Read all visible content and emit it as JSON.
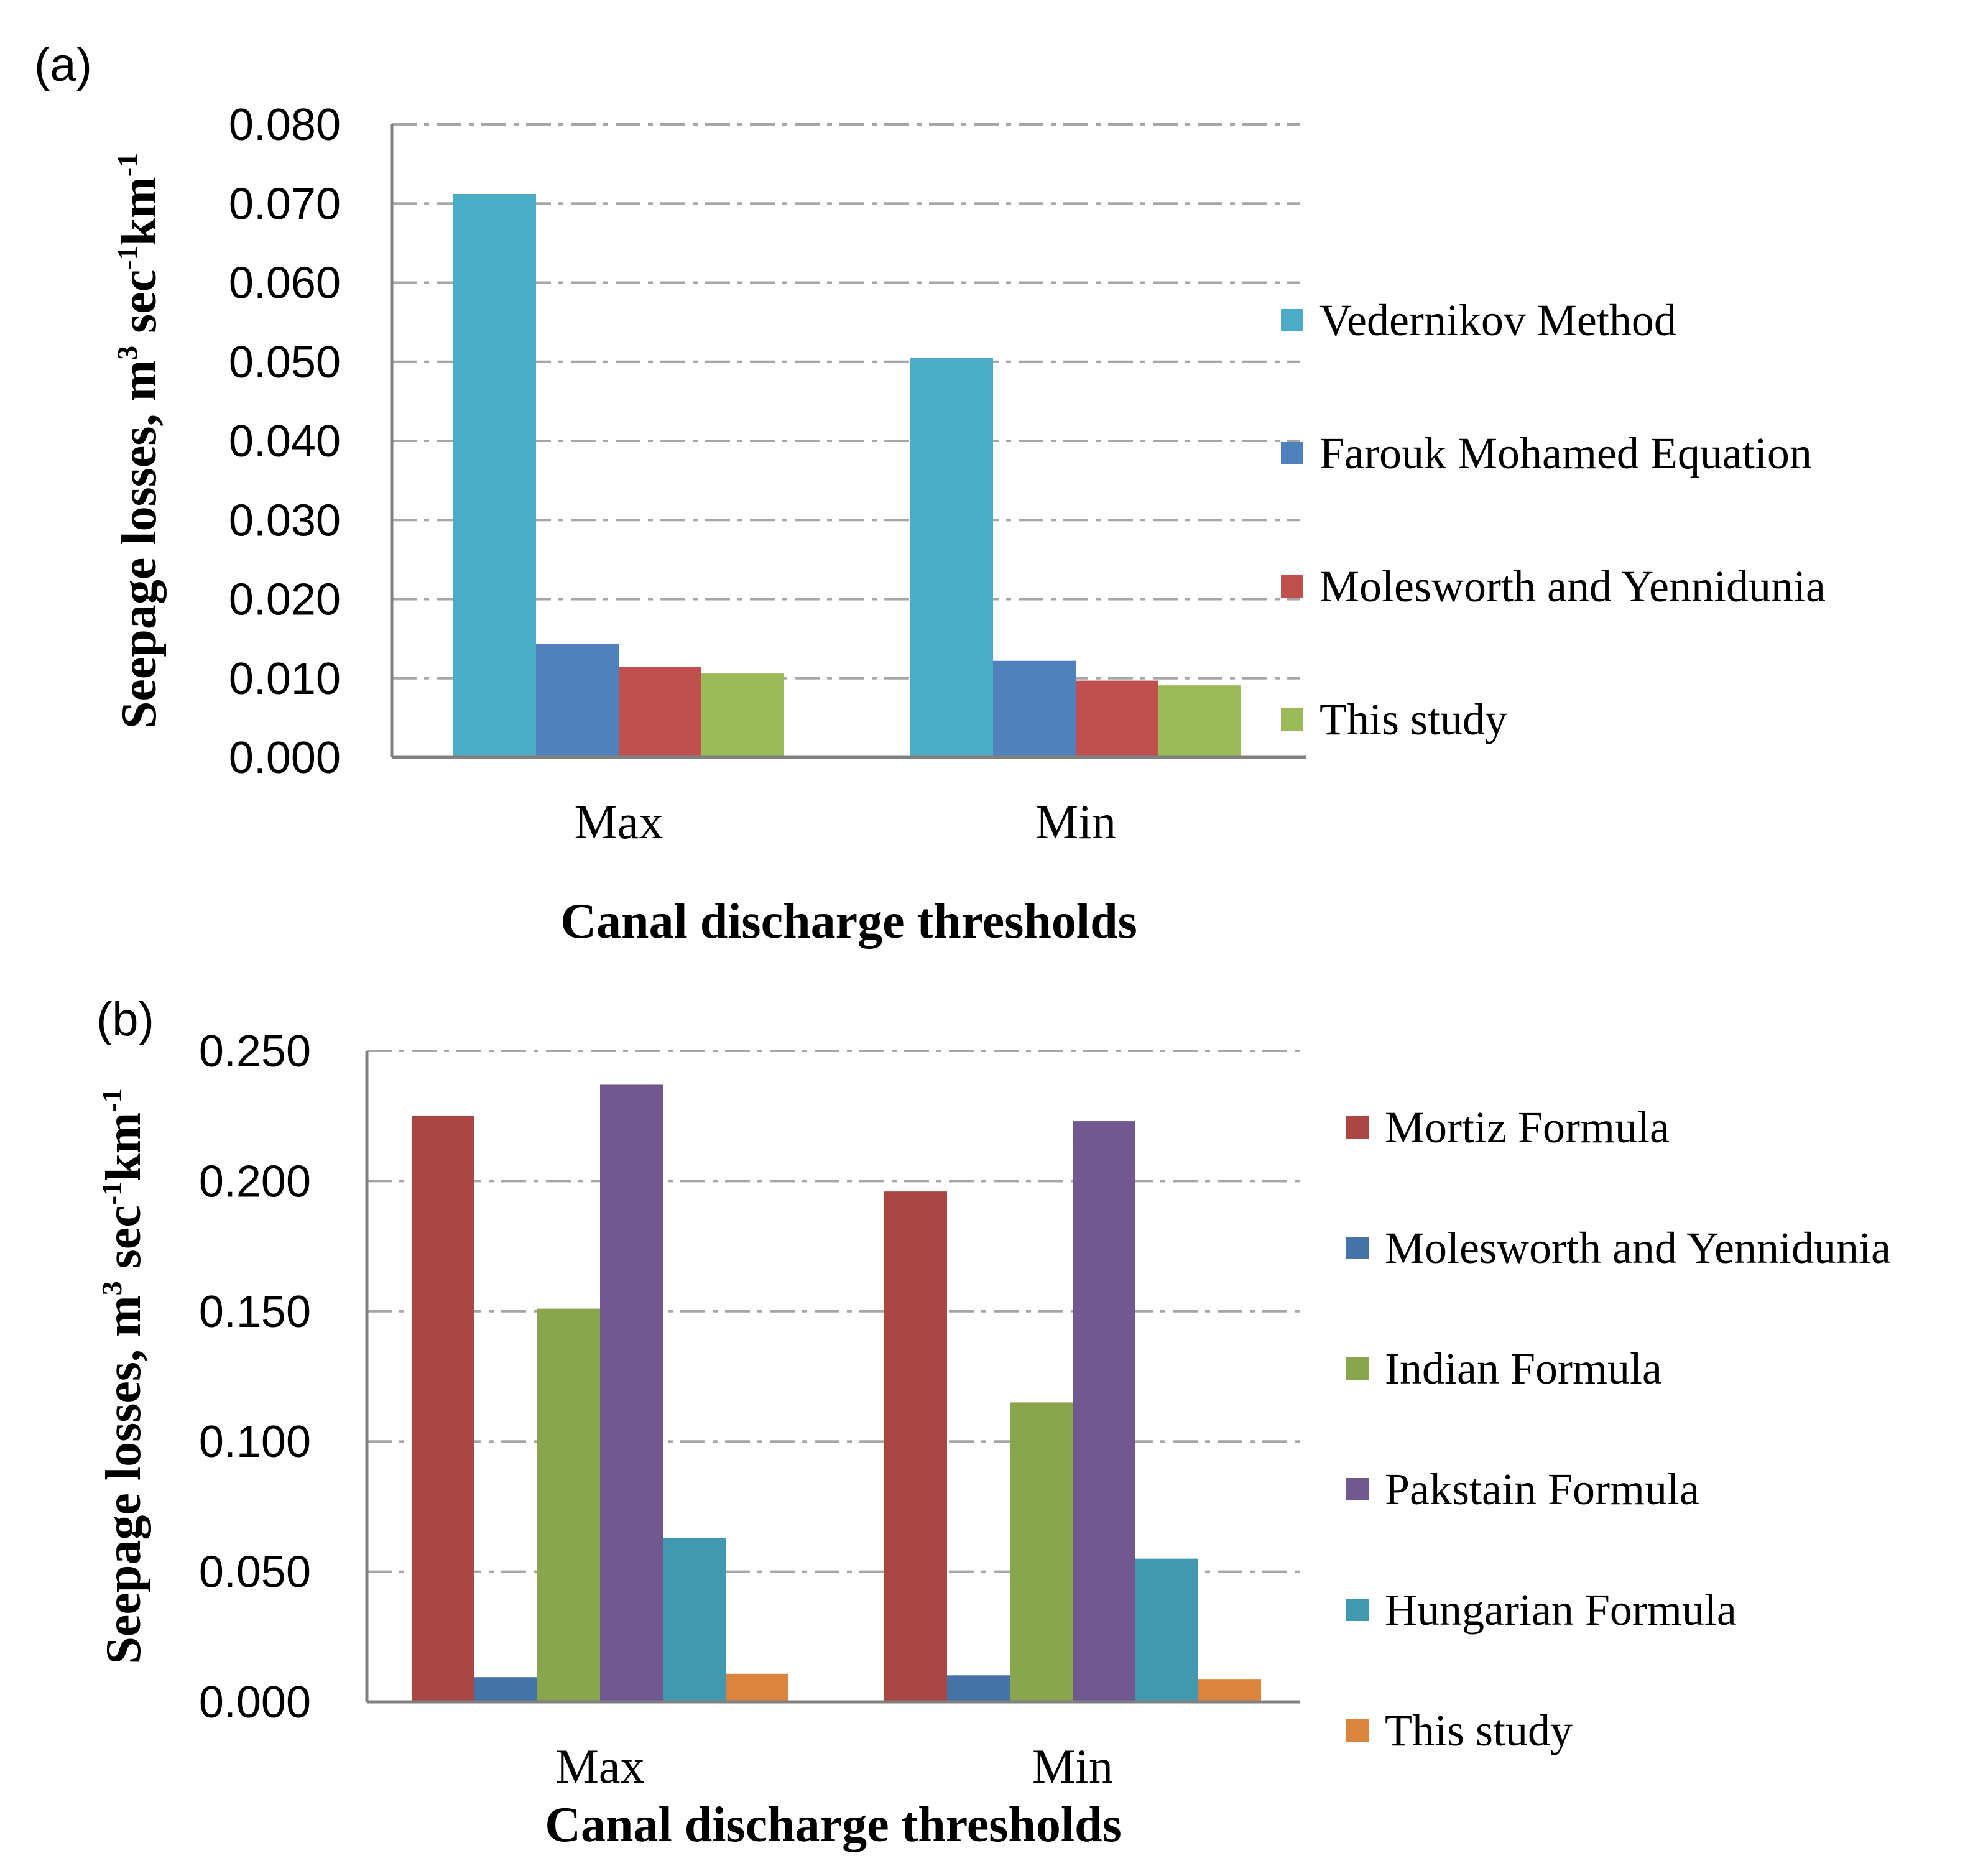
{
  "chart_data": [
    {
      "type": "bar",
      "panel": "(a)",
      "categories": [
        "Max",
        "Min"
      ],
      "series": [
        {
          "name": "Vedernikov Method",
          "color": "#4BACC6",
          "values": [
            0.0712,
            0.0505
          ]
        },
        {
          "name": "Farouk Mohamed Equation",
          "color": "#4F81BD",
          "values": [
            0.0143,
            0.0122
          ]
        },
        {
          "name": "Molesworth and Yennidunia",
          "color": "#C0504D",
          "values": [
            0.0114,
            0.0097
          ]
        },
        {
          "name": "This study",
          "color": "#9BBB59",
          "values": [
            0.0106,
            0.0091
          ]
        }
      ],
      "ylim": [
        0,
        0.08
      ],
      "yticks": [
        "0.000",
        "0.010",
        "0.020",
        "0.030",
        "0.040",
        "0.050",
        "0.060",
        "0.070",
        "0.080"
      ],
      "ytick_values": [
        0,
        0.01,
        0.02,
        0.03,
        0.04,
        0.05,
        0.06,
        0.07,
        0.08
      ],
      "xlabel": "Canal discharge thresholds",
      "ylabel": {
        "prefix": "Seepage losses, m",
        "sup1": "3",
        "mid1": " sec",
        "sup2": "-1",
        "mid2": "km",
        "sup3": "-1"
      },
      "grid": true,
      "legend_position": "right"
    },
    {
      "type": "bar",
      "panel": "(b)",
      "categories": [
        "Max",
        "Min"
      ],
      "series": [
        {
          "name": "Mortiz Formula",
          "color": "#AA4643",
          "values": [
            0.225,
            0.196
          ]
        },
        {
          "name": "Molesworth and Yennidunia",
          "color": "#4572A7",
          "values": [
            0.0095,
            0.0102
          ]
        },
        {
          "name": "Indian Formula",
          "color": "#89A54E",
          "values": [
            0.151,
            0.115
          ]
        },
        {
          "name": "Pakstain Formula",
          "color": "#71588F",
          "values": [
            0.237,
            0.223
          ]
        },
        {
          "name": "Hungarian Formula",
          "color": "#4198AF",
          "values": [
            0.063,
            0.055
          ]
        },
        {
          "name": "This study",
          "color": "#DB843D",
          "values": [
            0.0108,
            0.0088
          ]
        }
      ],
      "ylim": [
        0,
        0.25
      ],
      "yticks": [
        "0.000",
        "0.050",
        "0.100",
        "0.150",
        "0.200",
        "0.250"
      ],
      "ytick_values": [
        0,
        0.05,
        0.1,
        0.15,
        0.2,
        0.25
      ],
      "xlabel": "Canal discharge thresholds",
      "ylabel": {
        "prefix": "Seepage losses, m",
        "sup1": "3",
        "mid1": " sec",
        "sup2": "-1",
        "mid2": "km",
        "sup3": "-1"
      },
      "grid": true,
      "legend_position": "right"
    }
  ]
}
